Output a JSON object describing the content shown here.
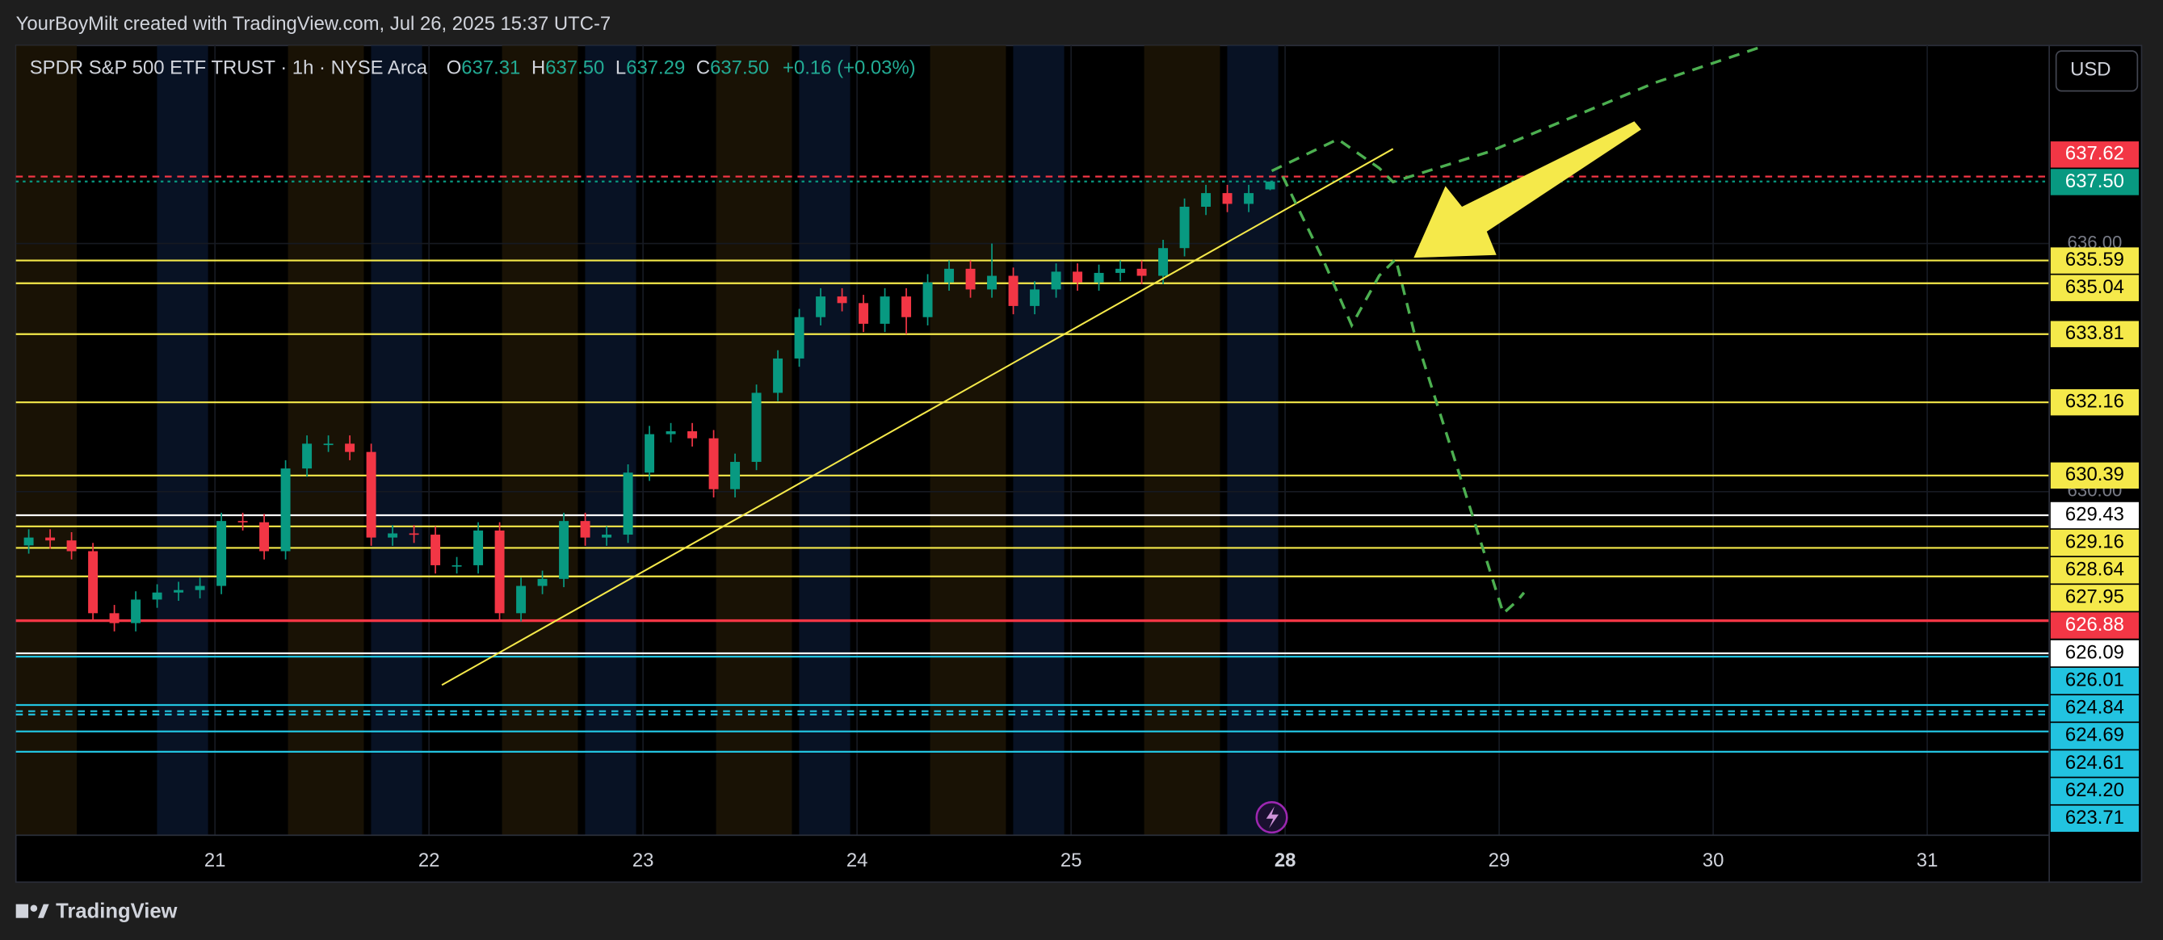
{
  "header": {
    "credit": "YourBoyMilt created with TradingView.com, Jul 26, 2025 15:37 UTC-7",
    "brand": "TradingView",
    "currency": "USD"
  },
  "chart_data": {
    "type": "candlestick",
    "symbol": "SPDR S&P 500 ETF TRUST · 1h · NYSE Arca",
    "ohlc_text": [
      {
        "key": "O",
        "val": "637.31"
      },
      {
        "key": "H",
        "val": "637.50"
      },
      {
        "key": "L",
        "val": "637.29"
      },
      {
        "key": "C",
        "val": "637.50"
      }
    ],
    "change": "+0.16 (+0.03%)",
    "up_color": "#089981",
    "down_color": "#f23645",
    "xlim": [
      20.07,
      29.57
    ],
    "ylim": [
      621.69,
      640.79
    ],
    "xticks": [
      21,
      22,
      23,
      24,
      25,
      {
        "value": 26,
        "label": "28"
      },
      {
        "value": 27,
        "label": "29"
      },
      {
        "value": 28,
        "label": "30"
      },
      {
        "value": 29,
        "label": "31"
      }
    ],
    "yticks": [
      {
        "value": 636,
        "label": "636.00"
      },
      {
        "value": 630,
        "label": "630.00"
      }
    ],
    "x": [
      20.13,
      20.23,
      20.33,
      20.43,
      20.53,
      20.63,
      20.73,
      20.83,
      20.93,
      21.03,
      21.13,
      21.23,
      21.33,
      21.43,
      21.53,
      21.63,
      21.73,
      21.83,
      21.93,
      22.03,
      22.13,
      22.23,
      22.33,
      22.43,
      22.53,
      22.63,
      22.73,
      22.83,
      22.93,
      23.03,
      23.13,
      23.23,
      23.33,
      23.43,
      23.53,
      23.63,
      23.73,
      23.83,
      23.93,
      24.03,
      24.13,
      24.23,
      24.33,
      24.43,
      24.53,
      24.63,
      24.73,
      24.83,
      24.93,
      25.03,
      25.13,
      25.23,
      25.33,
      25.43,
      25.53,
      25.63,
      25.73,
      25.83,
      25.93
    ],
    "open": [
      628.7,
      628.89,
      628.82,
      628.56,
      627.06,
      626.82,
      627.39,
      627.56,
      627.62,
      627.72,
      629.29,
      629.26,
      628.56,
      630.56,
      631.16,
      631.16,
      630.96,
      628.89,
      628.99,
      628.96,
      628.22,
      628.22,
      629.06,
      627.06,
      627.72,
      627.89,
      629.29,
      628.89,
      628.96,
      630.46,
      631.39,
      631.46,
      631.29,
      630.06,
      630.72,
      632.39,
      633.22,
      634.22,
      634.72,
      634.56,
      634.06,
      634.72,
      634.22,
      635.06,
      635.39,
      634.89,
      635.22,
      634.49,
      634.89,
      635.32,
      635.06,
      635.29,
      635.39,
      635.22,
      635.89,
      636.89,
      637.22,
      636.96,
      637.31
    ],
    "high": [
      629.09,
      629.09,
      629.02,
      628.76,
      627.26,
      627.59,
      627.76,
      627.82,
      627.92,
      629.49,
      629.49,
      629.46,
      630.76,
      631.36,
      631.36,
      631.36,
      631.16,
      629.19,
      629.19,
      629.16,
      628.42,
      629.26,
      629.26,
      627.92,
      628.09,
      629.49,
      629.49,
      629.16,
      630.66,
      631.59,
      631.66,
      631.66,
      631.49,
      630.92,
      632.59,
      633.42,
      634.42,
      634.92,
      634.92,
      634.76,
      634.92,
      634.92,
      635.26,
      635.59,
      635.59,
      636.0,
      635.42,
      635.09,
      635.52,
      635.52,
      635.49,
      635.59,
      635.59,
      636.09,
      637.09,
      637.42,
      637.42,
      637.42,
      637.5
    ],
    "low": [
      628.5,
      628.62,
      628.36,
      626.86,
      626.62,
      626.62,
      627.19,
      627.36,
      627.42,
      627.52,
      629.06,
      628.36,
      628.36,
      630.36,
      630.96,
      630.76,
      628.69,
      628.69,
      628.76,
      628.02,
      628.02,
      628.02,
      626.86,
      626.86,
      627.52,
      627.69,
      628.69,
      628.69,
      628.76,
      630.26,
      631.19,
      631.09,
      629.86,
      629.86,
      630.52,
      632.19,
      633.02,
      634.02,
      634.36,
      633.86,
      633.86,
      633.81,
      634.02,
      634.86,
      634.69,
      634.69,
      634.29,
      634.29,
      634.69,
      634.86,
      634.86,
      635.09,
      635.02,
      635.02,
      635.69,
      636.69,
      636.76,
      636.76,
      637.29
    ],
    "close": [
      628.89,
      628.82,
      628.56,
      627.06,
      626.82,
      627.39,
      627.56,
      627.62,
      627.72,
      629.29,
      629.26,
      628.56,
      630.56,
      631.16,
      631.16,
      630.96,
      628.89,
      628.99,
      628.96,
      628.22,
      628.22,
      629.06,
      627.06,
      627.72,
      627.89,
      629.29,
      628.89,
      628.96,
      630.46,
      631.39,
      631.46,
      631.29,
      630.06,
      630.72,
      632.39,
      633.22,
      634.22,
      634.72,
      634.56,
      634.06,
      634.72,
      634.22,
      635.06,
      635.39,
      634.89,
      635.22,
      634.49,
      634.89,
      635.32,
      635.06,
      635.29,
      635.39,
      635.22,
      635.89,
      636.89,
      637.22,
      636.96,
      637.22,
      637.5
    ],
    "levels": [
      {
        "value": 637.62,
        "label": "637.62",
        "color": "#f23645",
        "label_color": "#ffffff",
        "style": "dashed"
      },
      {
        "value": 637.5,
        "label": "637.50",
        "color": "#089981",
        "label_color": "#ffffff",
        "style": "dotted"
      },
      {
        "value": 635.59,
        "label": "635.59",
        "color": "#f5e94a",
        "label_color": "#000000",
        "style": "solid"
      },
      {
        "value": 635.04,
        "label": "635.04",
        "color": "#f5e94a",
        "label_color": "#000000",
        "style": "solid"
      },
      {
        "value": 633.81,
        "label": "633.81",
        "color": "#f5e94a",
        "label_color": "#000000",
        "style": "solid"
      },
      {
        "value": 632.16,
        "label": "632.16",
        "color": "#f5e94a",
        "label_color": "#000000",
        "style": "solid"
      },
      {
        "value": 630.39,
        "label": "630.39",
        "color": "#f5e94a",
        "label_color": "#000000",
        "style": "solid"
      },
      {
        "value": 629.43,
        "label": "629.43",
        "color": "#ffffff",
        "label_color": "#000000",
        "style": "solid"
      },
      {
        "value": 629.16,
        "label": "629.16",
        "color": "#f5e94a",
        "label_color": "#000000",
        "style": "solid"
      },
      {
        "value": 628.64,
        "label": "628.64",
        "color": "#f5e94a",
        "label_color": "#000000",
        "style": "solid"
      },
      {
        "value": 627.95,
        "label": "627.95",
        "color": "#f5e94a",
        "label_color": "#000000",
        "style": "solid"
      },
      {
        "value": 626.88,
        "label": "626.88",
        "color": "#f23645",
        "label_color": "#ffffff",
        "style": "solid"
      },
      {
        "value": 626.09,
        "label": "626.09",
        "color": "#ffffff",
        "label_color": "#000000",
        "style": "solid"
      },
      {
        "value": 626.01,
        "label": "626.01",
        "color": "#22c3e0",
        "label_color": "#000000",
        "style": "solid"
      },
      {
        "value": 624.84,
        "label": "624.84",
        "color": "#22c3e0",
        "label_color": "#000000",
        "style": "solid"
      },
      {
        "value": 624.69,
        "label": "624.69",
        "color": "#22c3e0",
        "label_color": "#000000",
        "style": "dashed"
      },
      {
        "value": 624.61,
        "label": "624.61",
        "color": "#22c3e0",
        "label_color": "#000000",
        "style": "dashed"
      },
      {
        "value": 624.2,
        "label": "624.20",
        "color": "#22c3e0",
        "label_color": "#000000",
        "style": "solid"
      },
      {
        "value": 623.71,
        "label": "623.71",
        "color": "#22c3e0",
        "label_color": "#000000",
        "style": "solid"
      }
    ]
  }
}
